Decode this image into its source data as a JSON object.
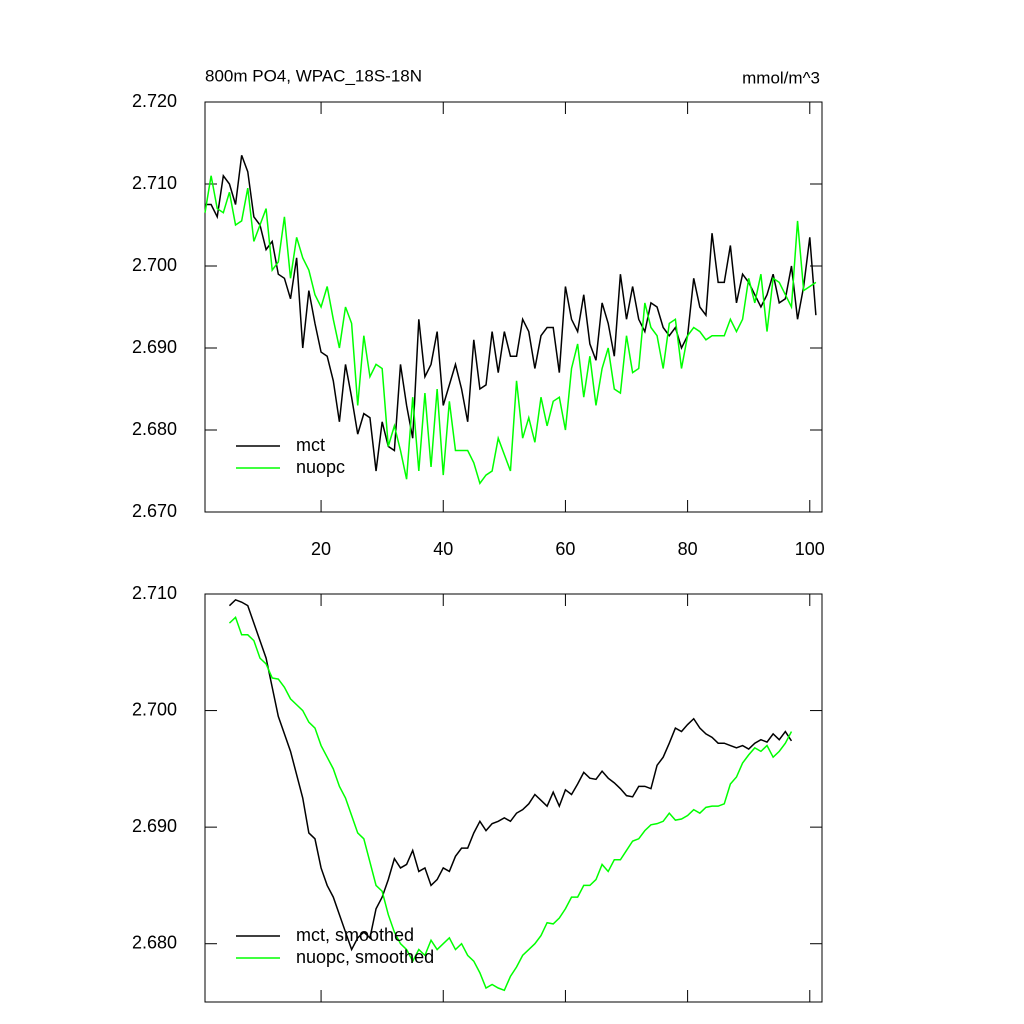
{
  "chart_data": [
    {
      "type": "line",
      "title": "800m PO4, WPAC_18S-18N",
      "units": "mmol/m^3",
      "xlim": [
        1,
        102
      ],
      "xticks": [
        20,
        40,
        60,
        80,
        100
      ],
      "ylim": [
        2.67,
        2.72
      ],
      "yticks": [
        {
          "value": 2.67,
          "label": "2.670"
        },
        {
          "value": 2.68,
          "label": "2.680"
        },
        {
          "value": 2.69,
          "label": "2.690"
        },
        {
          "value": 2.7,
          "label": "2.700"
        },
        {
          "value": 2.71,
          "label": "2.710"
        },
        {
          "value": 2.72,
          "label": "2.720"
        }
      ],
      "legend": "lower left",
      "x": [
        1,
        2,
        3,
        4,
        5,
        6,
        7,
        8,
        9,
        10,
        11,
        12,
        13,
        14,
        15,
        16,
        17,
        18,
        19,
        20,
        21,
        22,
        23,
        24,
        25,
        26,
        27,
        28,
        29,
        30,
        31,
        32,
        33,
        34,
        35,
        36,
        37,
        38,
        39,
        40,
        41,
        42,
        43,
        44,
        45,
        46,
        47,
        48,
        49,
        50,
        51,
        52,
        53,
        54,
        55,
        56,
        57,
        58,
        59,
        60,
        61,
        62,
        63,
        64,
        65,
        66,
        67,
        68,
        69,
        70,
        71,
        72,
        73,
        74,
        75,
        76,
        77,
        78,
        79,
        80,
        81,
        82,
        83,
        84,
        85,
        86,
        87,
        88,
        89,
        90,
        91,
        92,
        93,
        94,
        95,
        96,
        97,
        98,
        99,
        100,
        101
      ],
      "series": [
        {
          "name": "mct",
          "color": "#000000",
          "values": [
            2.7075,
            2.7075,
            2.706,
            2.711,
            2.71,
            2.7075,
            2.7135,
            2.7115,
            2.706,
            2.705,
            2.702,
            2.703,
            2.699,
            2.6985,
            2.696,
            2.701,
            2.69,
            2.697,
            2.693,
            2.6895,
            2.689,
            2.686,
            2.681,
            2.688,
            2.684,
            2.6795,
            2.682,
            2.6815,
            2.675,
            2.681,
            2.678,
            2.6775,
            2.688,
            2.683,
            2.679,
            2.6935,
            2.6865,
            2.688,
            2.692,
            2.683,
            2.6855,
            2.688,
            2.685,
            2.681,
            2.691,
            2.685,
            2.6855,
            2.692,
            2.687,
            2.692,
            2.689,
            2.689,
            2.6935,
            2.692,
            2.6875,
            2.6915,
            2.6925,
            2.6925,
            2.687,
            2.6975,
            2.6935,
            2.692,
            2.6965,
            2.6905,
            2.6885,
            2.6955,
            2.693,
            2.689,
            2.699,
            2.6935,
            2.6975,
            2.6935,
            2.692,
            2.6955,
            2.695,
            2.6925,
            2.6915,
            2.6925,
            2.69,
            2.6915,
            2.6985,
            2.695,
            2.694,
            2.704,
            2.698,
            2.698,
            2.7025,
            2.6955,
            2.699,
            2.698,
            2.6965,
            2.695,
            2.6965,
            2.699,
            2.6955,
            2.696,
            2.7,
            2.6935,
            2.6975,
            2.7035,
            2.694
          ]
        },
        {
          "name": "nuopc",
          "color": "#00ff00",
          "values": [
            2.7065,
            2.711,
            2.707,
            2.7065,
            2.709,
            2.705,
            2.7055,
            2.7095,
            2.703,
            2.705,
            2.707,
            2.6995,
            2.7005,
            2.706,
            2.6985,
            2.7035,
            2.701,
            2.6995,
            2.6965,
            2.695,
            2.6975,
            2.6935,
            2.69,
            2.695,
            2.693,
            2.683,
            2.6915,
            2.6865,
            2.688,
            2.6875,
            2.678,
            2.6805,
            2.6775,
            2.674,
            2.684,
            2.675,
            2.6845,
            2.6755,
            2.685,
            2.6745,
            2.6835,
            2.6775,
            2.6775,
            2.6775,
            2.676,
            2.6735,
            2.6745,
            2.675,
            2.679,
            2.677,
            2.675,
            2.686,
            2.679,
            2.6815,
            2.6785,
            2.684,
            2.6805,
            2.6835,
            2.684,
            2.68,
            2.6875,
            2.6905,
            2.684,
            2.689,
            2.683,
            2.6875,
            2.69,
            2.685,
            2.6845,
            2.6915,
            2.687,
            2.6875,
            2.6955,
            2.6925,
            2.6915,
            2.6875,
            2.693,
            2.6935,
            2.6875,
            2.6915,
            2.6925,
            2.692,
            2.691,
            2.6915,
            2.6915,
            2.6915,
            2.6935,
            2.692,
            2.6935,
            2.6985,
            2.6955,
            2.699,
            2.692,
            2.6985,
            2.698,
            2.6965,
            2.695,
            2.7055,
            2.697,
            2.6975,
            2.698
          ]
        }
      ]
    },
    {
      "type": "line",
      "xlim": [
        1,
        102
      ],
      "xticks": [
        20,
        40,
        60,
        80,
        100
      ],
      "ylim": [
        2.675,
        2.71
      ],
      "yticks": [
        {
          "value": 2.68,
          "label": "2.680"
        },
        {
          "value": 2.69,
          "label": "2.690"
        },
        {
          "value": 2.7,
          "label": "2.700"
        },
        {
          "value": 2.71,
          "label": "2.710"
        }
      ],
      "legend": "lower left",
      "x": [
        5,
        6,
        7,
        8,
        9,
        10,
        11,
        12,
        13,
        14,
        15,
        16,
        17,
        18,
        19,
        20,
        21,
        22,
        23,
        24,
        25,
        26,
        27,
        28,
        29,
        30,
        31,
        32,
        33,
        34,
        35,
        36,
        37,
        38,
        39,
        40,
        41,
        42,
        43,
        44,
        45,
        46,
        47,
        48,
        49,
        50,
        51,
        52,
        53,
        54,
        55,
        56,
        57,
        58,
        59,
        60,
        61,
        62,
        63,
        64,
        65,
        66,
        67,
        68,
        69,
        70,
        71,
        72,
        73,
        74,
        75,
        76,
        77,
        78,
        79,
        80,
        81,
        82,
        83,
        84,
        85,
        86,
        87,
        88,
        89,
        90,
        91,
        92,
        93,
        94,
        95,
        96,
        97
      ],
      "series": [
        {
          "name": "mct, smoothed",
          "color": "#000000",
          "values": [
            2.709,
            2.7095,
            2.7093,
            2.709,
            2.7075,
            2.706,
            2.7045,
            2.702,
            2.6995,
            2.698,
            2.6965,
            2.6945,
            2.6925,
            2.6895,
            2.689,
            2.6865,
            2.685,
            2.684,
            2.6825,
            2.681,
            2.6795,
            2.6805,
            2.681,
            2.6805,
            2.683,
            2.684,
            2.6855,
            2.6873,
            2.6865,
            2.6868,
            2.688,
            2.6862,
            2.6865,
            2.685,
            2.6855,
            2.6865,
            2.6862,
            2.6875,
            2.6882,
            2.6882,
            2.6895,
            2.6905,
            2.6897,
            2.6903,
            2.6905,
            2.6908,
            2.6905,
            2.6912,
            2.6915,
            2.692,
            2.6928,
            2.6923,
            2.6918,
            2.693,
            2.6918,
            2.6932,
            2.6928,
            2.6937,
            2.6947,
            2.6942,
            2.6941,
            2.6948,
            2.6942,
            2.6938,
            2.6933,
            2.6927,
            2.6926,
            2.6935,
            2.6935,
            2.6933,
            2.6953,
            2.696,
            2.6972,
            2.6985,
            2.6982,
            2.6988,
            2.6993,
            2.6985,
            2.698,
            2.6977,
            2.6972,
            2.6972,
            2.697,
            2.6968,
            2.697,
            2.6967,
            2.6972,
            2.6975,
            2.6973,
            2.698,
            2.6975,
            2.6982,
            2.6974
          ]
        },
        {
          "name": "nuopc, smoothed",
          "color": "#00ff00",
          "values": [
            2.7075,
            2.708,
            2.7065,
            2.7065,
            2.706,
            2.7045,
            2.704,
            2.7028,
            2.7027,
            2.702,
            2.701,
            2.7005,
            2.7,
            2.699,
            2.6985,
            2.697,
            2.696,
            2.695,
            2.6935,
            2.6925,
            2.691,
            2.6895,
            2.689,
            2.687,
            2.685,
            2.6845,
            2.6825,
            2.681,
            2.68,
            2.6795,
            2.6785,
            2.6795,
            2.679,
            2.6803,
            2.6795,
            2.68,
            2.6805,
            2.6795,
            2.68,
            2.679,
            2.6785,
            2.6775,
            2.6762,
            2.6765,
            2.6762,
            2.676,
            2.6772,
            2.678,
            2.679,
            2.6795,
            2.68,
            2.6807,
            2.6818,
            2.6817,
            2.6822,
            2.683,
            2.684,
            2.684,
            2.685,
            2.685,
            2.6855,
            2.6868,
            2.6862,
            2.6872,
            2.6872,
            2.688,
            2.6888,
            2.689,
            2.6897,
            2.6902,
            2.6903,
            2.6905,
            2.6912,
            2.6906,
            2.6907,
            2.691,
            2.6915,
            2.6912,
            2.6917,
            2.6918,
            2.6918,
            2.692,
            2.6937,
            2.6943,
            2.6955,
            2.6962,
            2.6968,
            2.6965,
            2.697,
            2.696,
            2.6965,
            2.6972,
            2.6982
          ]
        }
      ]
    }
  ]
}
